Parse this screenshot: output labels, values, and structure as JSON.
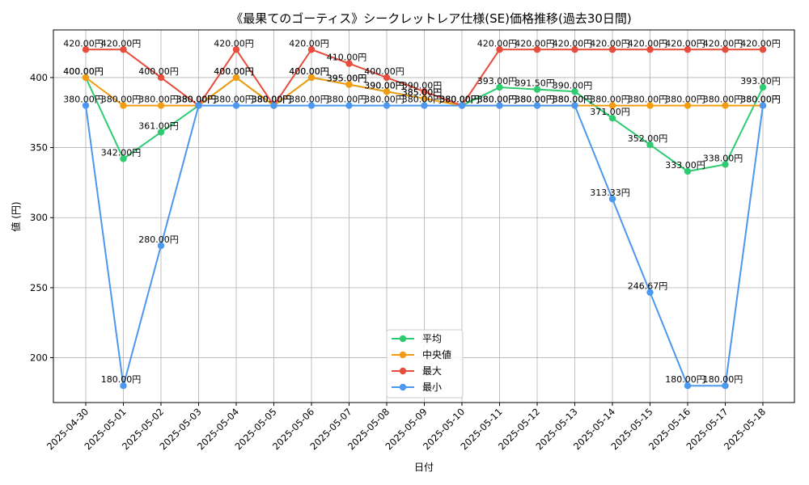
{
  "chart_data": {
    "type": "line",
    "title": "《最果てのゴーティス》シークレットレア仕様(SE)価格推移(過去30日間)",
    "xlabel": "日付",
    "ylabel": "値 (円)",
    "ylim": [
      168,
      434
    ],
    "yticks": [
      200,
      250,
      300,
      350,
      400
    ],
    "grid": true,
    "legend_position": "lower-center",
    "value_suffix": "円",
    "categories": [
      "2025-04-30",
      "2025-05-01",
      "2025-05-02",
      "2025-05-03",
      "2025-05-04",
      "2025-05-05",
      "2025-05-06",
      "2025-05-07",
      "2025-05-08",
      "2025-05-09",
      "2025-05-10",
      "2025-05-11",
      "2025-05-12",
      "2025-05-13",
      "2025-05-14",
      "2025-05-15",
      "2025-05-16",
      "2025-05-17",
      "2025-05-18"
    ],
    "series": [
      {
        "name": "平均",
        "color": "#2ecc71",
        "values": [
          400,
          342,
          361,
          380,
          400,
          380,
          400,
          395,
          390,
          385,
          380,
          393,
          391.5,
          390,
          371,
          352,
          333,
          338,
          393
        ]
      },
      {
        "name": "中央値",
        "color": "#f39c12",
        "values": [
          400,
          380,
          380,
          380,
          400,
          380,
          400,
          395,
          390,
          385,
          380,
          380,
          380,
          380,
          380,
          380,
          380,
          380,
          380
        ]
      },
      {
        "name": "最大",
        "color": "#e74c3c",
        "values": [
          420,
          420,
          400,
          380,
          420,
          380,
          420,
          410,
          400,
          390,
          380,
          420,
          420,
          420,
          420,
          420,
          420,
          420,
          420
        ]
      },
      {
        "name": "最小",
        "color": "#4a98f0",
        "values": [
          380,
          180,
          280,
          380,
          380,
          380,
          380,
          380,
          380,
          380,
          380,
          380,
          380,
          380,
          313.33,
          246.67,
          180,
          180,
          380
        ]
      }
    ]
  }
}
